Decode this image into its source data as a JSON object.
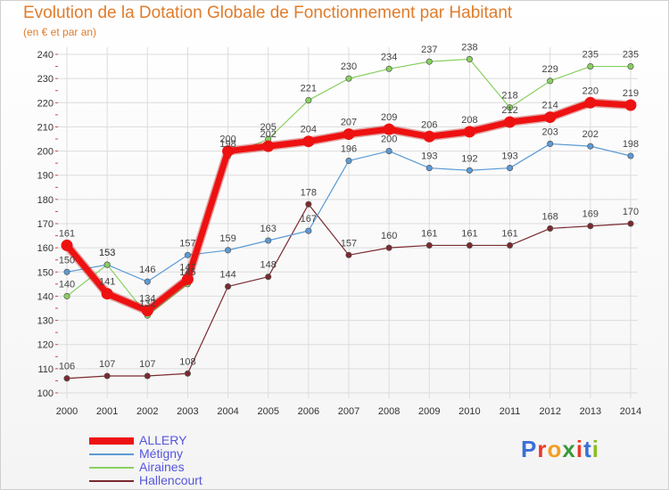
{
  "chart_data": {
    "type": "line",
    "title": "Evolution de la Dotation Globale de Fonctionnement par Habitant",
    "subtitle": "(en € et par an)",
    "ylim": [
      100,
      240
    ],
    "yticks": [
      100,
      110,
      120,
      130,
      140,
      150,
      160,
      170,
      180,
      190,
      200,
      210,
      220,
      230,
      240
    ],
    "x": [
      "2000",
      "2001",
      "2002",
      "2003",
      "2004",
      "2005",
      "2006",
      "2007",
      "2008",
      "2009",
      "2010",
      "2011",
      "2012",
      "2013",
      "2014"
    ],
    "grid": true,
    "legend_position": "bottom-left",
    "series": [
      {
        "name": "Hallencourt",
        "color": "#7a2a30",
        "values": [
          106,
          107,
          107,
          108,
          144,
          148,
          178,
          157,
          160,
          161,
          161,
          161,
          168,
          169,
          170
        ]
      },
      {
        "name": "Métigny",
        "color": "#5b9bd5",
        "values": [
          150,
          153,
          146,
          157,
          159,
          163,
          167,
          196,
          200,
          193,
          192,
          193,
          203,
          202,
          198
        ]
      },
      {
        "name": "Airaines",
        "color": "#88d060",
        "values": [
          140,
          153,
          132,
          145,
          198,
          205,
          221,
          230,
          234,
          237,
          238,
          218,
          229,
          235,
          235
        ]
      },
      {
        "name": "ALLERY",
        "color": "#ee1111",
        "values": [
          161,
          141,
          134,
          147,
          200,
          202,
          204,
          207,
          209,
          206,
          208,
          212,
          214,
          220,
          219
        ]
      }
    ],
    "legend": [
      "ALLERY",
      "Métigny",
      "Airaines",
      "Hallencourt"
    ]
  },
  "brand": {
    "text": "Proxiti",
    "letter_colors": [
      "#3a6fd8",
      "#e83a2a",
      "#f0a020",
      "#3a9a3a",
      "#e83a2a",
      "#3a6fd8",
      "#88c020"
    ]
  }
}
